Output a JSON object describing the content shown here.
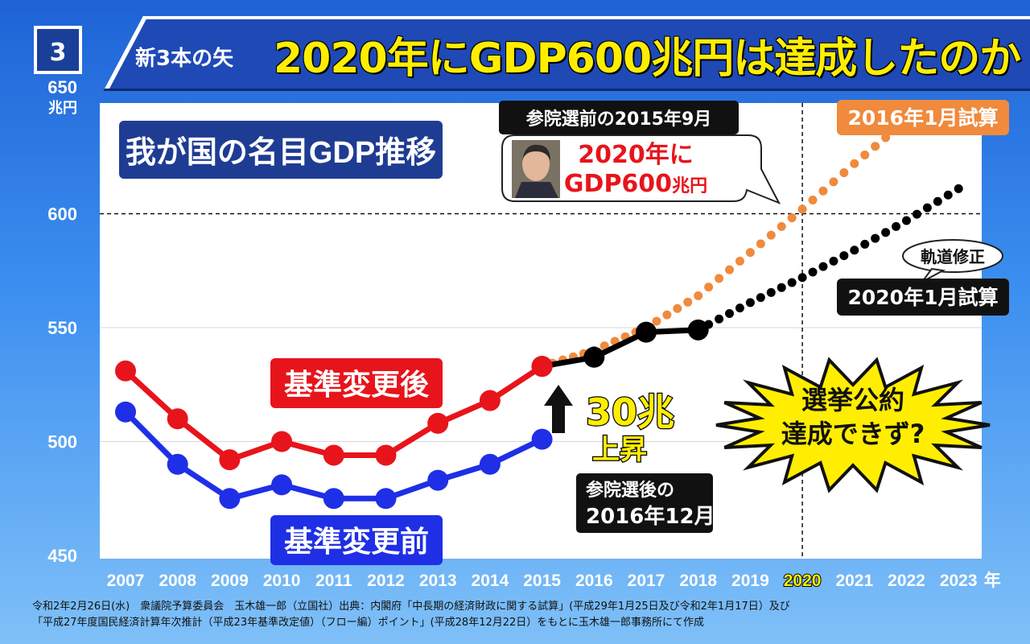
{
  "header": {
    "number": "3",
    "subtitle": "新3本の矢",
    "title": "2020年にGDP600兆円は達成したのか"
  },
  "chart_data": {
    "type": "line",
    "title": "我が国の名目GDP推移",
    "y_unit": "兆円",
    "x_unit": "年",
    "ylim": [
      450,
      650
    ],
    "yticks": [
      "650",
      "600",
      "550",
      "500",
      "450"
    ],
    "categories": [
      "2007",
      "2008",
      "2009",
      "2010",
      "2011",
      "2012",
      "2013",
      "2014",
      "2015",
      "2016",
      "2017",
      "2018",
      "2019",
      "2020",
      "2021",
      "2022",
      "2023"
    ],
    "highlight_year": "2020",
    "reference_line": 600,
    "series": [
      {
        "name": "基準変更後",
        "color": "#e8141b",
        "style": "solid",
        "x": [
          "2007",
          "2008",
          "2009",
          "2010",
          "2011",
          "2012",
          "2013",
          "2014",
          "2015"
        ],
        "values": [
          531,
          510,
          492,
          500,
          494,
          494,
          508,
          518,
          533
        ]
      },
      {
        "name": "基準変更前",
        "color": "#1f2fe6",
        "style": "solid",
        "x": [
          "2007",
          "2008",
          "2009",
          "2010",
          "2011",
          "2012",
          "2013",
          "2014",
          "2015"
        ],
        "values": [
          513,
          490,
          475,
          481,
          475,
          475,
          483,
          490,
          501
        ]
      },
      {
        "name": "",
        "color": "#000000",
        "style": "solid",
        "x": [
          "2015",
          "2016",
          "2017",
          "2018"
        ],
        "values": [
          533,
          537,
          548,
          549
        ]
      },
      {
        "name": "2016年1月試算",
        "color": "#f08a3c",
        "style": "dotted",
        "x": [
          "2015",
          "2016",
          "2017",
          "2018",
          "2019",
          "2020",
          "2021",
          "2022"
        ],
        "values": [
          533,
          540,
          550,
          564,
          583,
          602,
          622,
          641
        ]
      },
      {
        "name": "2020年1月試算",
        "color": "#000000",
        "style": "dotted",
        "x": [
          "2018",
          "2019",
          "2020",
          "2021",
          "2022",
          "2023"
        ],
        "values": [
          549,
          561,
          572,
          584,
          597,
          611
        ]
      }
    ],
    "annotations": {
      "label_after": "基準変更後",
      "label_before": "基準変更前",
      "label_2016_estimate": "2016年1月試算",
      "label_2020_estimate": "2020年1月試算",
      "label_revision": "軌道修正",
      "sep2015_title": "参院選前の2015年9月",
      "sep2015_line1": "2020年に",
      "sep2015_line2a": "GDP600",
      "sep2015_line2b": "兆円",
      "rise_line1": "30兆",
      "rise_line2": "上昇",
      "after_election_line1": "参院選後の",
      "after_election_line2": "2016年12月",
      "burst_line1": "選挙公約",
      "burst_line2": "達成できず?"
    }
  },
  "footer": {
    "line1": "令和2年2月26日(水)　衆議院予算委員会　玉木雄一郎（立国社）出典：内閣府「中長期の経済財政に関する試算」(平成29年1月25日及び令和2年1月17日）及び",
    "line2": "「平成27年度国民経済計算年次推計（平成23年基準改定値）（フロー編）ポイント」(平成28年12月22日）をもとに玉木雄一郎事務所にて作成"
  }
}
